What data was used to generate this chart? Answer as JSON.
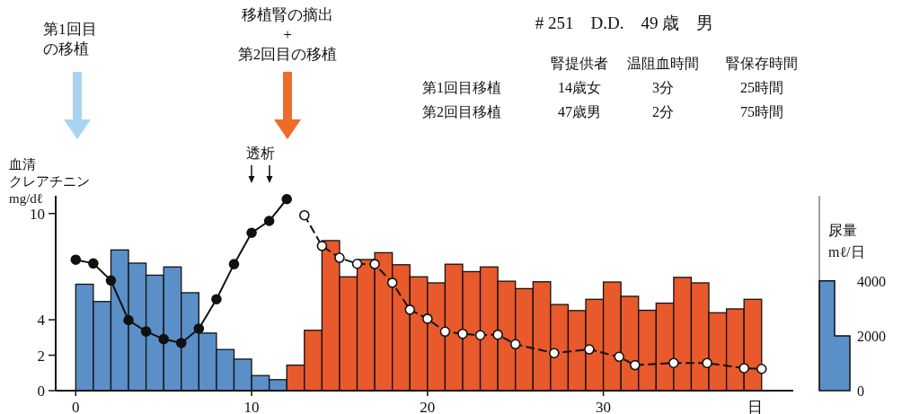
{
  "chart_data": {
    "type": "histogram",
    "title": "# 251　D.D.　49 歳　男",
    "xlabel": "日",
    "ylabel": "血清クレアチニン\nmg/dℓ",
    "y2label": "尿量\nmℓ/日",
    "xlim": [
      -1.14,
      40.8
    ],
    "xticks": [
      0,
      10,
      20,
      30
    ],
    "ylim": [
      0,
      11
    ],
    "yticks": [
      0,
      2,
      4,
      10
    ],
    "y2lim": [
      0,
      7105
    ],
    "y2ticks": [
      0,
      2000,
      4000
    ],
    "marker": "circle",
    "grid": false,
    "series": [
      {
        "axis": "y2",
        "color": "#5b8fc7",
        "bins": [
          0,
          1,
          2,
          3,
          4,
          5,
          6,
          7,
          8,
          9,
          10,
          11,
          12
        ],
        "values": [
          3880,
          3250,
          5130,
          4650,
          4210,
          4510,
          3570,
          2100,
          1500,
          1150,
          550,
          400
        ]
      },
      {
        "axis": "y2",
        "color": "#e8592b",
        "bins": [
          12,
          13,
          14,
          15,
          16,
          17,
          18,
          19,
          20,
          21,
          22,
          23,
          24,
          25,
          26,
          27,
          28,
          29,
          30,
          31,
          32,
          33,
          34,
          35,
          36,
          37,
          38,
          39
        ],
        "values": [
          930,
          2200,
          5470,
          4150,
          4780,
          5030,
          4590,
          4150,
          3930,
          4610,
          4340,
          4510,
          3990,
          3720,
          3970,
          3140,
          2920,
          3330,
          3960,
          3440,
          2930,
          3190,
          4130,
          3930,
          2840,
          2980,
          3330
        ]
      },
      {
        "type": "line",
        "line_style": "dashed",
        "color": "#111111",
        "x": [
          13,
          14,
          15,
          16,
          17,
          18,
          19,
          20,
          21,
          22,
          23,
          24,
          25,
          27.2,
          29.2,
          30.9,
          31.8,
          34,
          35.9,
          38,
          39
        ],
        "values": [
          9.9,
          8.17,
          7.5,
          7.16,
          7.14,
          6.09,
          4.57,
          4.06,
          3.33,
          3.21,
          3.13,
          3.16,
          2.62,
          2.12,
          2.33,
          1.91,
          1.44,
          1.56,
          1.56,
          1.27,
          1.23
        ]
      },
      {
        "type": "line",
        "line_style": "solid",
        "color": "#111111",
        "x": [
          0,
          1,
          2,
          3,
          4,
          5,
          6,
          7,
          8,
          9,
          10,
          11,
          12
        ],
        "values": [
          7.39,
          7.18,
          6.22,
          3.98,
          3.34,
          2.91,
          2.69,
          3.5,
          5.16,
          7.14,
          8.91,
          9.58,
          10.81
        ]
      }
    ],
    "annotations": [
      "第1回目の移植",
      "移植腎の摘出\n+\n第2回目の移植",
      "透析",
      "腎提供者",
      "温阻血時間",
      "腎保存時間",
      "第1回目移植",
      "14歳女",
      "3分",
      "25時間",
      "第2回目移植",
      "47歳男",
      "2分",
      "75時間"
    ]
  }
}
